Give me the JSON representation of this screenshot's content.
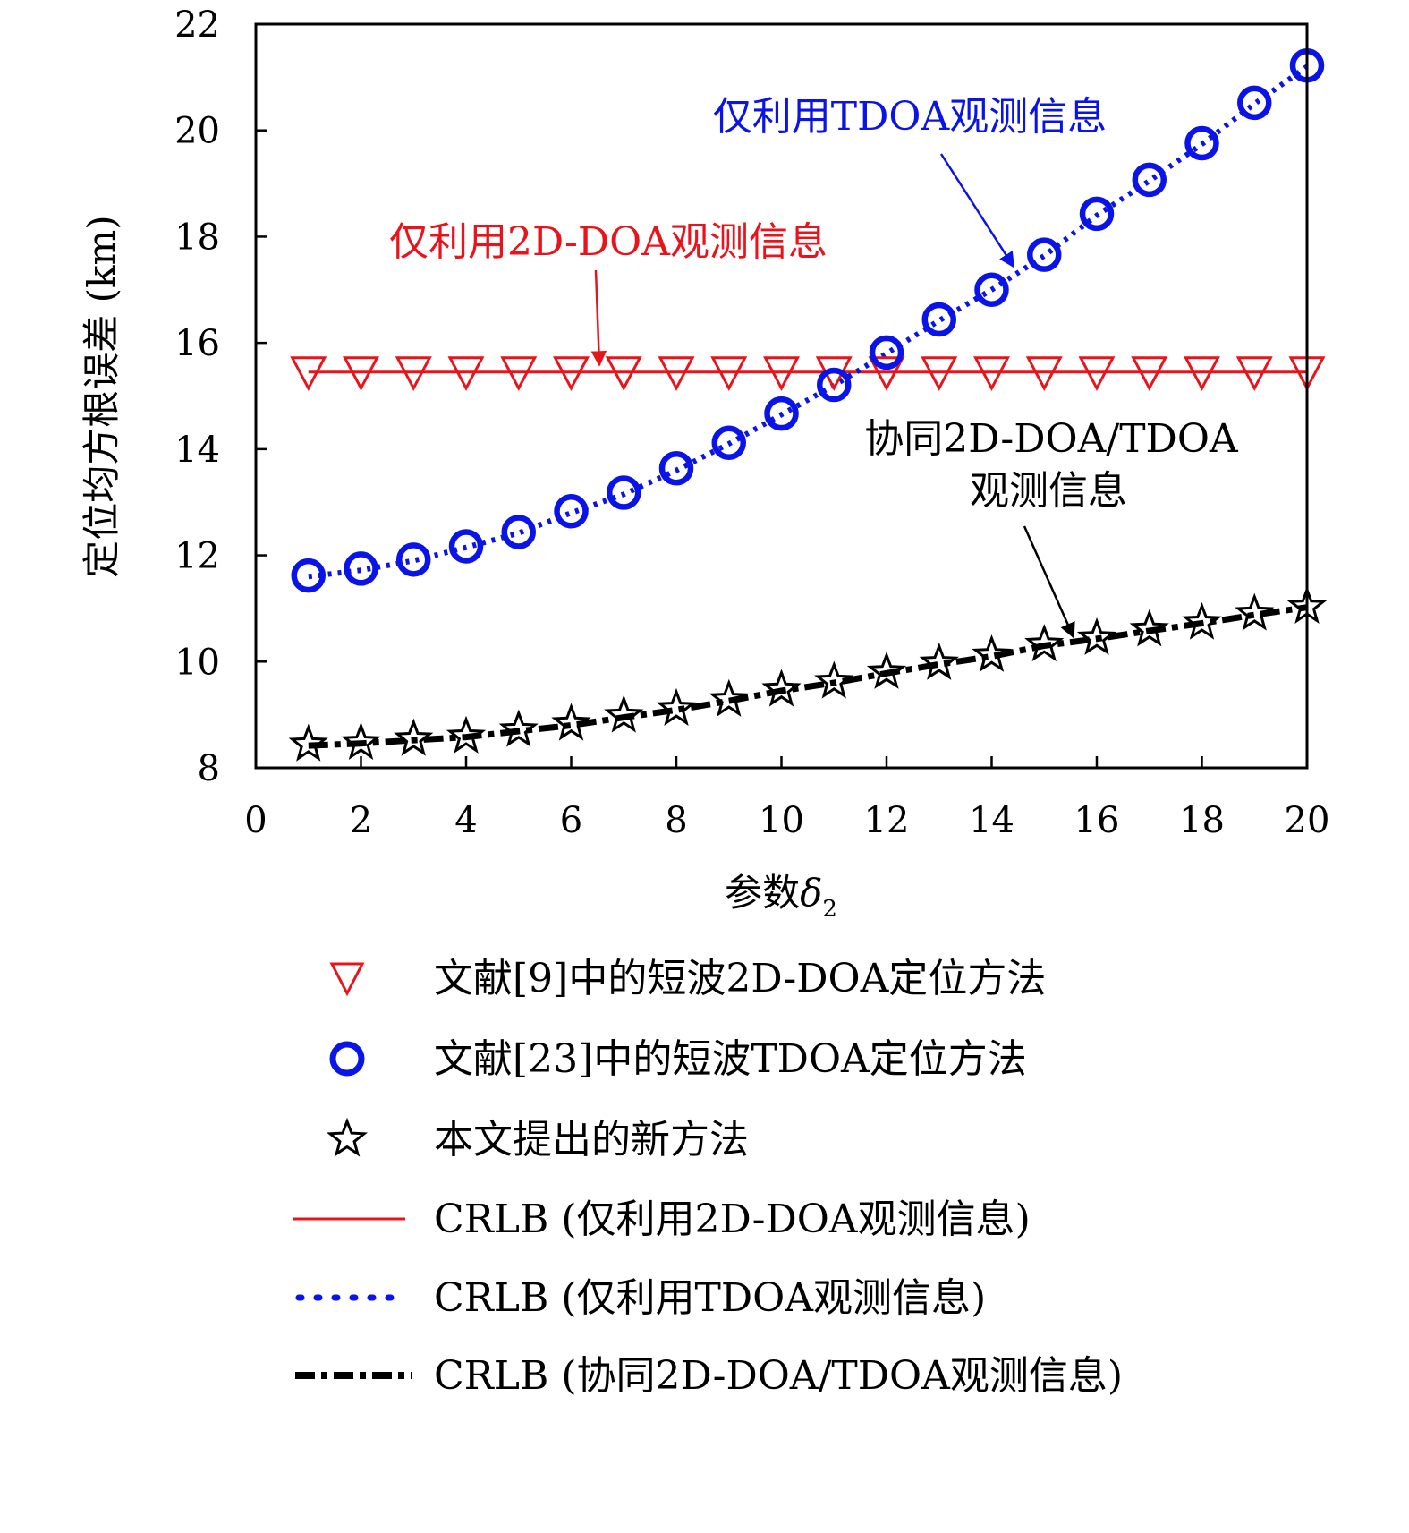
{
  "chart_data": {
    "type": "line",
    "title": "",
    "xlabel": "参数",
    "xlabel_symbol": "δ",
    "xlabel_subscript": "2",
    "ylabel": "定位均方根误差 (km)",
    "xlim": [
      0,
      20
    ],
    "ylim": [
      8,
      22
    ],
    "xticks": [
      "0",
      "2",
      "4",
      "6",
      "8",
      "10",
      "12",
      "14",
      "16",
      "18",
      "20"
    ],
    "yticks": [
      "8",
      "10",
      "12",
      "14",
      "16",
      "18",
      "20",
      "22"
    ],
    "grid": false,
    "x": [
      1,
      2,
      3,
      4,
      5,
      6,
      7,
      8,
      9,
      10,
      11,
      12,
      13,
      14,
      15,
      16,
      17,
      18,
      19,
      20
    ],
    "series": [
      {
        "name": "文献[9]中的短波2D-DOA定位方法",
        "kind": "marker",
        "marker": "triangle-down",
        "color": "#e8141c",
        "values": [
          15.45,
          15.45,
          15.45,
          15.45,
          15.45,
          15.45,
          15.45,
          15.45,
          15.45,
          15.45,
          15.45,
          15.45,
          15.45,
          15.45,
          15.45,
          15.45,
          15.45,
          15.45,
          15.45,
          15.45
        ]
      },
      {
        "name": "文献[23]中的短波TDOA定位方法",
        "kind": "marker",
        "marker": "circle",
        "color": "#0a14e6",
        "values": [
          11.62,
          11.75,
          11.92,
          12.17,
          12.44,
          12.83,
          13.18,
          13.64,
          14.12,
          14.67,
          15.21,
          15.82,
          16.44,
          17.0,
          17.66,
          18.43,
          19.07,
          19.76,
          20.52,
          21.22
        ]
      },
      {
        "name": "本文提出的新方法",
        "kind": "marker",
        "marker": "star",
        "color": "#000000",
        "values": [
          8.44,
          8.47,
          8.54,
          8.59,
          8.71,
          8.83,
          8.98,
          9.11,
          9.28,
          9.47,
          9.62,
          9.8,
          9.97,
          10.12,
          10.32,
          10.44,
          10.6,
          10.73,
          10.9,
          11.03
        ]
      },
      {
        "name": "CRLB (仅利用2D-DOA观测信息)",
        "kind": "line",
        "dash": "solid",
        "color": "#e8141c",
        "values": [
          15.45,
          15.45,
          15.45,
          15.45,
          15.45,
          15.45,
          15.45,
          15.45,
          15.45,
          15.45,
          15.45,
          15.45,
          15.45,
          15.45,
          15.45,
          15.45,
          15.45,
          15.45,
          15.45,
          15.45
        ]
      },
      {
        "name": "CRLB (仅利用TDOA观测信息)",
        "kind": "line",
        "dash": "dotted",
        "color": "#0a14e6",
        "values": [
          11.6,
          11.72,
          11.9,
          12.15,
          12.42,
          12.8,
          13.15,
          13.6,
          14.1,
          14.65,
          15.2,
          15.8,
          16.42,
          17.0,
          17.64,
          18.4,
          19.05,
          19.74,
          20.5,
          21.2
        ]
      },
      {
        "name": "CRLB (协同2D-DOA/TDOA观测信息)",
        "kind": "line",
        "dash": "dashdot",
        "color": "#000000",
        "values": [
          8.42,
          8.46,
          8.52,
          8.58,
          8.69,
          8.8,
          8.95,
          9.09,
          9.26,
          9.45,
          9.6,
          9.78,
          9.95,
          10.1,
          10.3,
          10.43,
          10.58,
          10.72,
          10.88,
          11.02
        ]
      }
    ],
    "annotations": [
      {
        "text": "仅利用TDOA观测信息",
        "color": "#0a14e6",
        "points_to": [
          14.6,
          17.5
        ]
      },
      {
        "text": "仅利用2D-DOA观测信息",
        "color": "#e8141c",
        "points_to": [
          6.5,
          15.6
        ]
      },
      {
        "text_lines": [
          "协同2D-DOA/TDOA",
          "观测信息"
        ],
        "color": "#000000",
        "points_to": [
          15.5,
          10.3
        ]
      }
    ],
    "legend_position": "bottom"
  }
}
